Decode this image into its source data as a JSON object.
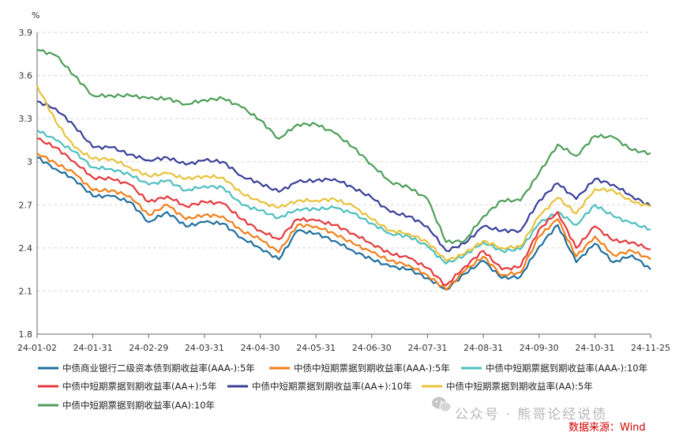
{
  "chart_data": {
    "type": "line",
    "ylabel": "%",
    "ylim": [
      1.8,
      3.9
    ],
    "y_ticks": [
      "1.8",
      "2.1",
      "2.4",
      "2.7",
      "3",
      "3.3",
      "3.6",
      "3.9"
    ],
    "x_ticks": [
      "24-01-02",
      "24-01-31",
      "24-02-29",
      "24-03-31",
      "24-04-30",
      "24-05-31",
      "24-06-30",
      "24-07-31",
      "24-08-31",
      "24-09-30",
      "24-10-31",
      "24-11-25"
    ],
    "grid": true,
    "legend_position": "bottom",
    "series": [
      {
        "name": "中债商业银行二级资本债到期收益率(AAA-):5年",
        "color": "#1f6f9e",
        "values": [
          3.03,
          2.95,
          2.88,
          2.76,
          2.76,
          2.72,
          2.58,
          2.65,
          2.55,
          2.58,
          2.57,
          2.47,
          2.4,
          2.32,
          2.52,
          2.5,
          2.45,
          2.38,
          2.32,
          2.27,
          2.25,
          2.19,
          2.11,
          2.22,
          2.31,
          2.19,
          2.2,
          2.41,
          2.56,
          2.3,
          2.43,
          2.3,
          2.35,
          2.25
        ]
      },
      {
        "name": "中债中短期票据到期收益率(AAA-):5年",
        "color": "#f07f1a",
        "values": [
          3.06,
          2.99,
          2.92,
          2.8,
          2.8,
          2.76,
          2.63,
          2.7,
          2.6,
          2.63,
          2.62,
          2.52,
          2.46,
          2.37,
          2.56,
          2.55,
          2.5,
          2.43,
          2.37,
          2.31,
          2.28,
          2.21,
          2.11,
          2.24,
          2.34,
          2.21,
          2.23,
          2.48,
          2.6,
          2.34,
          2.48,
          2.35,
          2.38,
          2.32
        ]
      },
      {
        "name": "中债中短期票据到期收益率(AAA-):10年",
        "color": "#4dbfbf",
        "values": [
          3.22,
          3.15,
          3.07,
          2.96,
          2.95,
          2.91,
          2.84,
          2.87,
          2.8,
          2.83,
          2.82,
          2.7,
          2.66,
          2.61,
          2.67,
          2.67,
          2.68,
          2.64,
          2.57,
          2.5,
          2.48,
          2.41,
          2.29,
          2.35,
          2.44,
          2.38,
          2.39,
          2.57,
          2.65,
          2.56,
          2.7,
          2.62,
          2.57,
          2.53
        ]
      },
      {
        "name": "中债中短期票据到期收益率(AA+):5年",
        "color": "#e6393c",
        "values": [
          3.16,
          3.1,
          3.0,
          2.89,
          2.88,
          2.84,
          2.72,
          2.76,
          2.69,
          2.72,
          2.71,
          2.6,
          2.52,
          2.46,
          2.6,
          2.59,
          2.56,
          2.5,
          2.43,
          2.36,
          2.33,
          2.26,
          2.14,
          2.27,
          2.38,
          2.25,
          2.27,
          2.53,
          2.65,
          2.4,
          2.55,
          2.45,
          2.44,
          2.39
        ]
      },
      {
        "name": "中债中短期票据到期收益率(AA+):10年",
        "color": "#3a3f99",
        "values": [
          3.42,
          3.37,
          3.25,
          3.1,
          3.1,
          3.05,
          3.01,
          3.03,
          2.98,
          3.01,
          3.0,
          2.9,
          2.85,
          2.79,
          2.86,
          2.87,
          2.88,
          2.82,
          2.75,
          2.65,
          2.62,
          2.55,
          2.38,
          2.43,
          2.55,
          2.52,
          2.52,
          2.73,
          2.85,
          2.74,
          2.88,
          2.84,
          2.76,
          2.69
        ]
      },
      {
        "name": "中债中短期票据到期收益率(AA):5年",
        "color": "#e8c23a",
        "values": [
          3.53,
          3.28,
          3.1,
          3.02,
          3.02,
          2.96,
          2.9,
          2.92,
          2.88,
          2.9,
          2.89,
          2.78,
          2.72,
          2.68,
          2.73,
          2.73,
          2.74,
          2.69,
          2.6,
          2.52,
          2.5,
          2.44,
          2.31,
          2.36,
          2.45,
          2.4,
          2.41,
          2.62,
          2.75,
          2.64,
          2.81,
          2.8,
          2.72,
          2.69
        ]
      },
      {
        "name": "中债中短期票据到期收益率(AA):10年",
        "color": "#4e9e58",
        "values": [
          3.78,
          3.74,
          3.6,
          3.46,
          3.46,
          3.46,
          3.44,
          3.44,
          3.4,
          3.43,
          3.44,
          3.38,
          3.29,
          3.16,
          3.26,
          3.26,
          3.2,
          3.1,
          2.98,
          2.86,
          2.82,
          2.74,
          2.44,
          2.45,
          2.62,
          2.73,
          2.73,
          2.92,
          3.12,
          3.04,
          3.18,
          3.17,
          3.08,
          3.06
        ]
      }
    ]
  },
  "watermark": "公众号 · 熊哥论经说债",
  "source": "数据来源：Wind"
}
